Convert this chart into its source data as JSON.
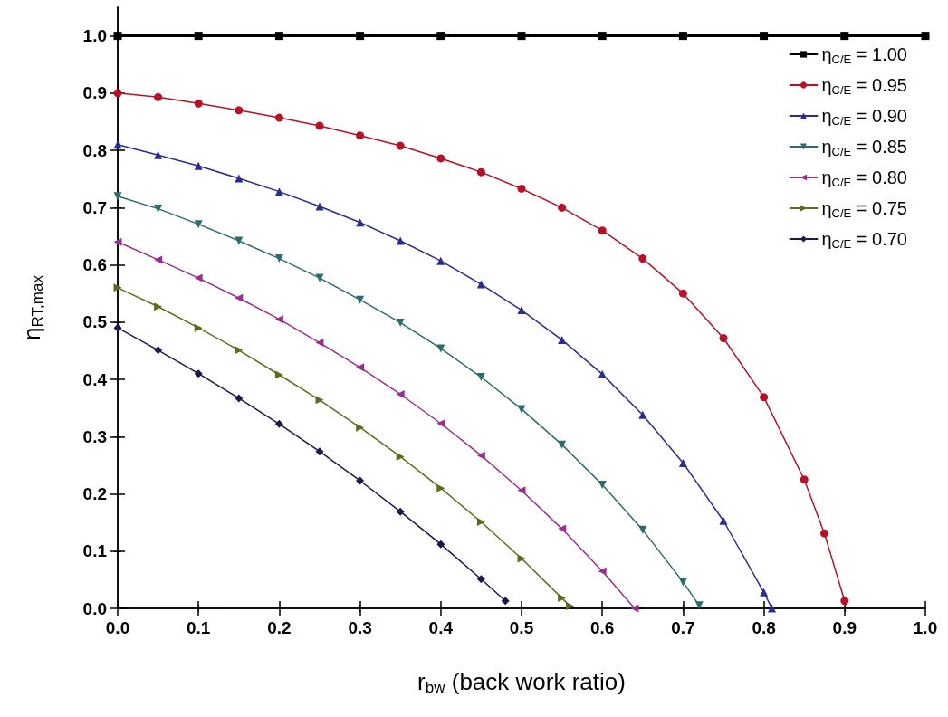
{
  "chart_data": {
    "type": "line",
    "xlabel": "r$_{bw}$ (back work ratio)",
    "ylabel": "η$_{RT,max}$",
    "xlim": [
      0,
      1
    ],
    "ylim": [
      0,
      1.05
    ],
    "xticks": [
      {
        "value": 0,
        "label": "0.0"
      },
      {
        "value": 0.1,
        "label": "0.1"
      },
      {
        "value": 0.2,
        "label": "0.2"
      },
      {
        "value": 0.3,
        "label": "0.3"
      },
      {
        "value": 0.4,
        "label": "0.4"
      },
      {
        "value": 0.5,
        "label": "0.5"
      },
      {
        "value": 0.6,
        "label": "0.6"
      },
      {
        "value": 0.7,
        "label": "0.7"
      },
      {
        "value": 0.8,
        "label": "0.8"
      },
      {
        "value": 0.9,
        "label": "0.9"
      },
      {
        "value": 1,
        "label": "1.0"
      }
    ],
    "yticks": [
      {
        "value": 0,
        "label": "0.0"
      },
      {
        "value": 0.1,
        "label": "0.1"
      },
      {
        "value": 0.2,
        "label": "0.2"
      },
      {
        "value": 0.3,
        "label": "0.3"
      },
      {
        "value": 0.4,
        "label": "0.4"
      },
      {
        "value": 0.5,
        "label": "0.5"
      },
      {
        "value": 0.6,
        "label": "0.6"
      },
      {
        "value": 0.7,
        "label": "0.7"
      },
      {
        "value": 0.8,
        "label": "0.8"
      },
      {
        "value": 0.9,
        "label": "0.9"
      },
      {
        "value": 1,
        "label": "1.0"
      }
    ],
    "legend": "top right",
    "grid": false,
    "line_style": "solid",
    "series": [
      {
        "name": "η$_{C/E}$ = 1.00",
        "color": "#000000",
        "marker": "square",
        "x": [
          0,
          0.1,
          0.2,
          0.3,
          0.4,
          0.5,
          0.6,
          0.7,
          0.8,
          0.9,
          1
        ],
        "values": [
          1,
          1,
          1,
          1,
          1,
          1,
          1,
          1,
          1,
          1,
          1
        ]
      },
      {
        "name": "η$_{C/E}$ = 0.95",
        "color": "#b5122a",
        "marker": "circle",
        "x": [
          0,
          0.05,
          0.1,
          0.15,
          0.2,
          0.25,
          0.3,
          0.35,
          0.4,
          0.45,
          0.5,
          0.55,
          0.6,
          0.65,
          0.7,
          0.75,
          0.8,
          0.85,
          0.875,
          0.9
        ],
        "values": [
          0.9,
          0.893,
          0.882,
          0.87,
          0.857,
          0.843,
          0.826,
          0.808,
          0.786,
          0.762,
          0.733,
          0.7,
          0.66,
          0.611,
          0.55,
          0.472,
          0.369,
          0.225,
          0.131,
          0.013
        ]
      },
      {
        "name": "η$_{C/E}$ = 0.90",
        "color": "#2a2d8f",
        "marker": "triangle",
        "x": [
          0,
          0.05,
          0.1,
          0.15,
          0.2,
          0.25,
          0.3,
          0.35,
          0.4,
          0.45,
          0.5,
          0.55,
          0.6,
          0.65,
          0.7,
          0.75,
          0.8,
          0.81
        ],
        "values": [
          0.81,
          0.792,
          0.773,
          0.751,
          0.728,
          0.702,
          0.674,
          0.642,
          0.607,
          0.566,
          0.521,
          0.469,
          0.409,
          0.338,
          0.254,
          0.153,
          0.028,
          0
        ]
      },
      {
        "name": "η$_{C/E}$ = 0.85",
        "color": "#2e6b6b",
        "marker": "triangle-down",
        "x": [
          0,
          0.05,
          0.1,
          0.15,
          0.2,
          0.25,
          0.3,
          0.35,
          0.4,
          0.45,
          0.5,
          0.55,
          0.6,
          0.65,
          0.7,
          0.72
        ],
        "values": [
          0.72,
          0.698,
          0.671,
          0.642,
          0.611,
          0.577,
          0.539,
          0.499,
          0.454,
          0.404,
          0.348,
          0.286,
          0.216,
          0.137,
          0.046,
          0.005
        ]
      },
      {
        "name": "η$_{C/E}$ = 0.80",
        "color": "#9b2f8f",
        "marker": "triangle-left",
        "x": [
          0,
          0.05,
          0.1,
          0.15,
          0.2,
          0.25,
          0.3,
          0.35,
          0.4,
          0.45,
          0.5,
          0.55,
          0.6,
          0.64
        ],
        "values": [
          0.64,
          0.609,
          0.577,
          0.542,
          0.505,
          0.464,
          0.421,
          0.374,
          0.323,
          0.267,
          0.206,
          0.139,
          0.065,
          0
        ]
      },
      {
        "name": "η$_{C/E}$ = 0.75",
        "color": "#5e6b1e",
        "marker": "triangle-right",
        "x": [
          0,
          0.05,
          0.1,
          0.15,
          0.2,
          0.25,
          0.3,
          0.35,
          0.4,
          0.45,
          0.5,
          0.55,
          0.56
        ],
        "values": [
          0.56,
          0.527,
          0.49,
          0.451,
          0.408,
          0.364,
          0.316,
          0.265,
          0.21,
          0.151,
          0.087,
          0.018,
          0.004
        ]
      },
      {
        "name": "η$_{C/E}$ = 0.70",
        "color": "#1a1a4a",
        "marker": "diamond",
        "x": [
          0,
          0.05,
          0.1,
          0.15,
          0.2,
          0.25,
          0.3,
          0.35,
          0.4,
          0.45,
          0.48
        ],
        "values": [
          0.49,
          0.451,
          0.41,
          0.367,
          0.322,
          0.274,
          0.223,
          0.169,
          0.112,
          0.051,
          0.013
        ]
      }
    ]
  }
}
